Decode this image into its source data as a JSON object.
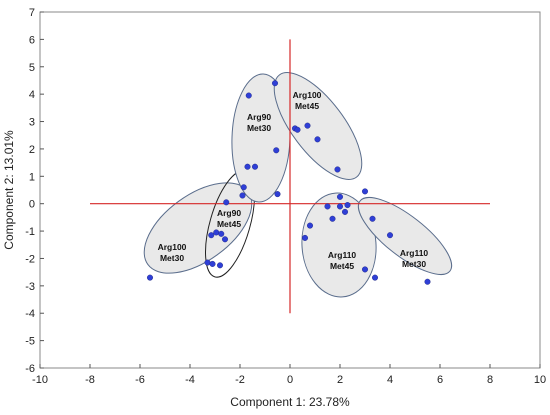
{
  "chart_data": {
    "type": "scatter",
    "title": "",
    "xlabel": "Component 1: 23.78%",
    "ylabel": "Component 2: 13.01%",
    "xlim": [
      -10,
      10
    ],
    "ylim": [
      -6,
      7
    ],
    "x_ticks": [
      -10,
      -8,
      -6,
      -4,
      -2,
      0,
      2,
      4,
      6,
      8,
      10
    ],
    "y_ticks": [
      -6,
      -5,
      -4,
      -3,
      -2,
      -1,
      0,
      1,
      2,
      3,
      4,
      5,
      6,
      7
    ],
    "grid": false,
    "reference_lines": {
      "color": "#d62828",
      "horizontal": {
        "y": 0,
        "x_from": -8,
        "x_to": 8
      },
      "vertical": {
        "x": 0,
        "y_from": -4,
        "y_to": 6
      }
    },
    "point_color": "#2f3fd6",
    "points": [
      {
        "x": -5.6,
        "y": -2.7
      },
      {
        "x": -3.3,
        "y": -2.15
      },
      {
        "x": -3.15,
        "y": -1.15
      },
      {
        "x": -2.95,
        "y": -1.05
      },
      {
        "x": -2.75,
        "y": -1.1
      },
      {
        "x": -2.6,
        "y": -1.3
      },
      {
        "x": -3.1,
        "y": -2.2
      },
      {
        "x": -2.8,
        "y": -2.25
      },
      {
        "x": -2.55,
        "y": 0.05
      },
      {
        "x": -1.9,
        "y": 0.3
      },
      {
        "x": -1.85,
        "y": 0.6
      },
      {
        "x": -1.7,
        "y": 1.35
      },
      {
        "x": -1.4,
        "y": 1.35
      },
      {
        "x": -1.65,
        "y": 3.95
      },
      {
        "x": -0.6,
        "y": 4.4
      },
      {
        "x": -0.55,
        "y": 1.95
      },
      {
        "x": -0.5,
        "y": 0.35
      },
      {
        "x": 0.2,
        "y": 2.75
      },
      {
        "x": 0.3,
        "y": 2.7
      },
      {
        "x": 0.7,
        "y": 2.85
      },
      {
        "x": 1.1,
        "y": 2.35
      },
      {
        "x": 1.9,
        "y": 1.25
      },
      {
        "x": 3.0,
        "y": 0.45
      },
      {
        "x": 2.0,
        "y": 0.25
      },
      {
        "x": 1.5,
        "y": -0.1
      },
      {
        "x": 1.7,
        "y": -0.55
      },
      {
        "x": 2.0,
        "y": -0.1
      },
      {
        "x": 2.3,
        "y": -0.05
      },
      {
        "x": 2.2,
        "y": -0.3
      },
      {
        "x": 3.3,
        "y": -0.55
      },
      {
        "x": 0.8,
        "y": -0.8
      },
      {
        "x": 0.6,
        "y": -1.25
      },
      {
        "x": 3.0,
        "y": -2.4
      },
      {
        "x": 3.4,
        "y": -2.7
      },
      {
        "x": 4.0,
        "y": -1.15
      },
      {
        "x": 5.5,
        "y": -2.85
      }
    ],
    "clusters": [
      {
        "label_line1": "Arg100",
        "label_line2": "Met30",
        "fill": true
      },
      {
        "label_line1": "Arg90",
        "label_line2": "Met45",
        "fill": false
      },
      {
        "label_line1": "Arg90",
        "label_line2": "Met30",
        "fill": true
      },
      {
        "label_line1": "Arg100",
        "label_line2": "Met45",
        "fill": true
      },
      {
        "label_line1": "Arg110",
        "label_line2": "Met45",
        "fill": true
      },
      {
        "label_line1": "Arg110",
        "label_line2": "Met30",
        "fill": true
      }
    ]
  }
}
